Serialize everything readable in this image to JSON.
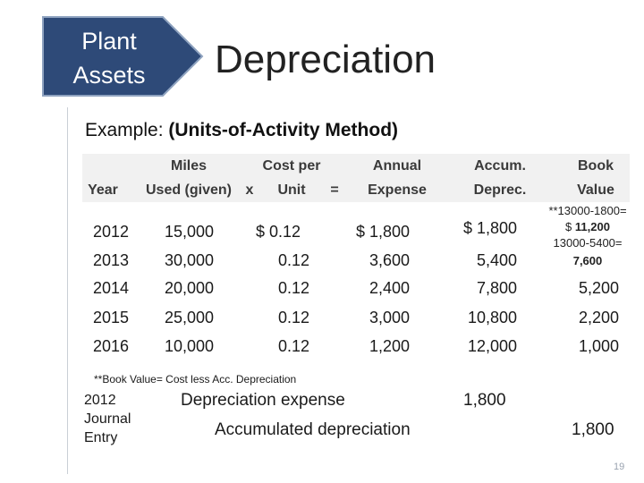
{
  "badge": {
    "line1": "Plant",
    "line2": "Assets",
    "color": "#2e4a78"
  },
  "title": "Depreciation",
  "example": {
    "prefix": "Example:",
    "method": "(Units-of-Activity Method)"
  },
  "table": {
    "headers": {
      "year": [
        "",
        "Year"
      ],
      "miles": [
        "Miles",
        "Used (given)"
      ],
      "x": [
        "",
        "x"
      ],
      "rate": [
        "Cost per",
        "Unit"
      ],
      "eq": [
        "",
        "="
      ],
      "expense": [
        "Annual",
        "Expense"
      ],
      "accum": [
        "Accum.",
        "Deprec."
      ],
      "book": [
        "Book",
        "Value"
      ]
    },
    "rows": [
      {
        "year": "2012",
        "miles": "15,000",
        "rate": "$ 0.12",
        "expense": "$ 1,800",
        "accum": "$ 1,800",
        "book": ""
      },
      {
        "year": "2013",
        "miles": "30,000",
        "rate": "0.12",
        "expense": "3,600",
        "accum": "5,400",
        "book": ""
      },
      {
        "year": "2014",
        "miles": "20,000",
        "rate": "0.12",
        "expense": "2,400",
        "accum": "7,800",
        "book": "5,200"
      },
      {
        "year": "2015",
        "miles": "25,000",
        "rate": "0.12",
        "expense": "3,000",
        "accum": "10,800",
        "book": "2,200"
      },
      {
        "year": "2016",
        "miles": "10,000",
        "rate": "0.12",
        "expense": "1,200",
        "accum": "12,000",
        "book": "1,000"
      }
    ],
    "book_notes": {
      "calc1": "**13000-1800=",
      "value1_prefix": "$",
      "value1": "11,200",
      "calc2": "13000-5400=",
      "value2": "7,600"
    }
  },
  "footnote": "**Book Value= Cost less Acc. Depreciation",
  "journal": {
    "label": [
      "2012",
      "Journal",
      "Entry"
    ],
    "debit_account": "Depreciation expense",
    "debit_amount": "1,800",
    "credit_account": "Accumulated depreciation",
    "credit_amount": "1,800"
  },
  "page_number": "19"
}
